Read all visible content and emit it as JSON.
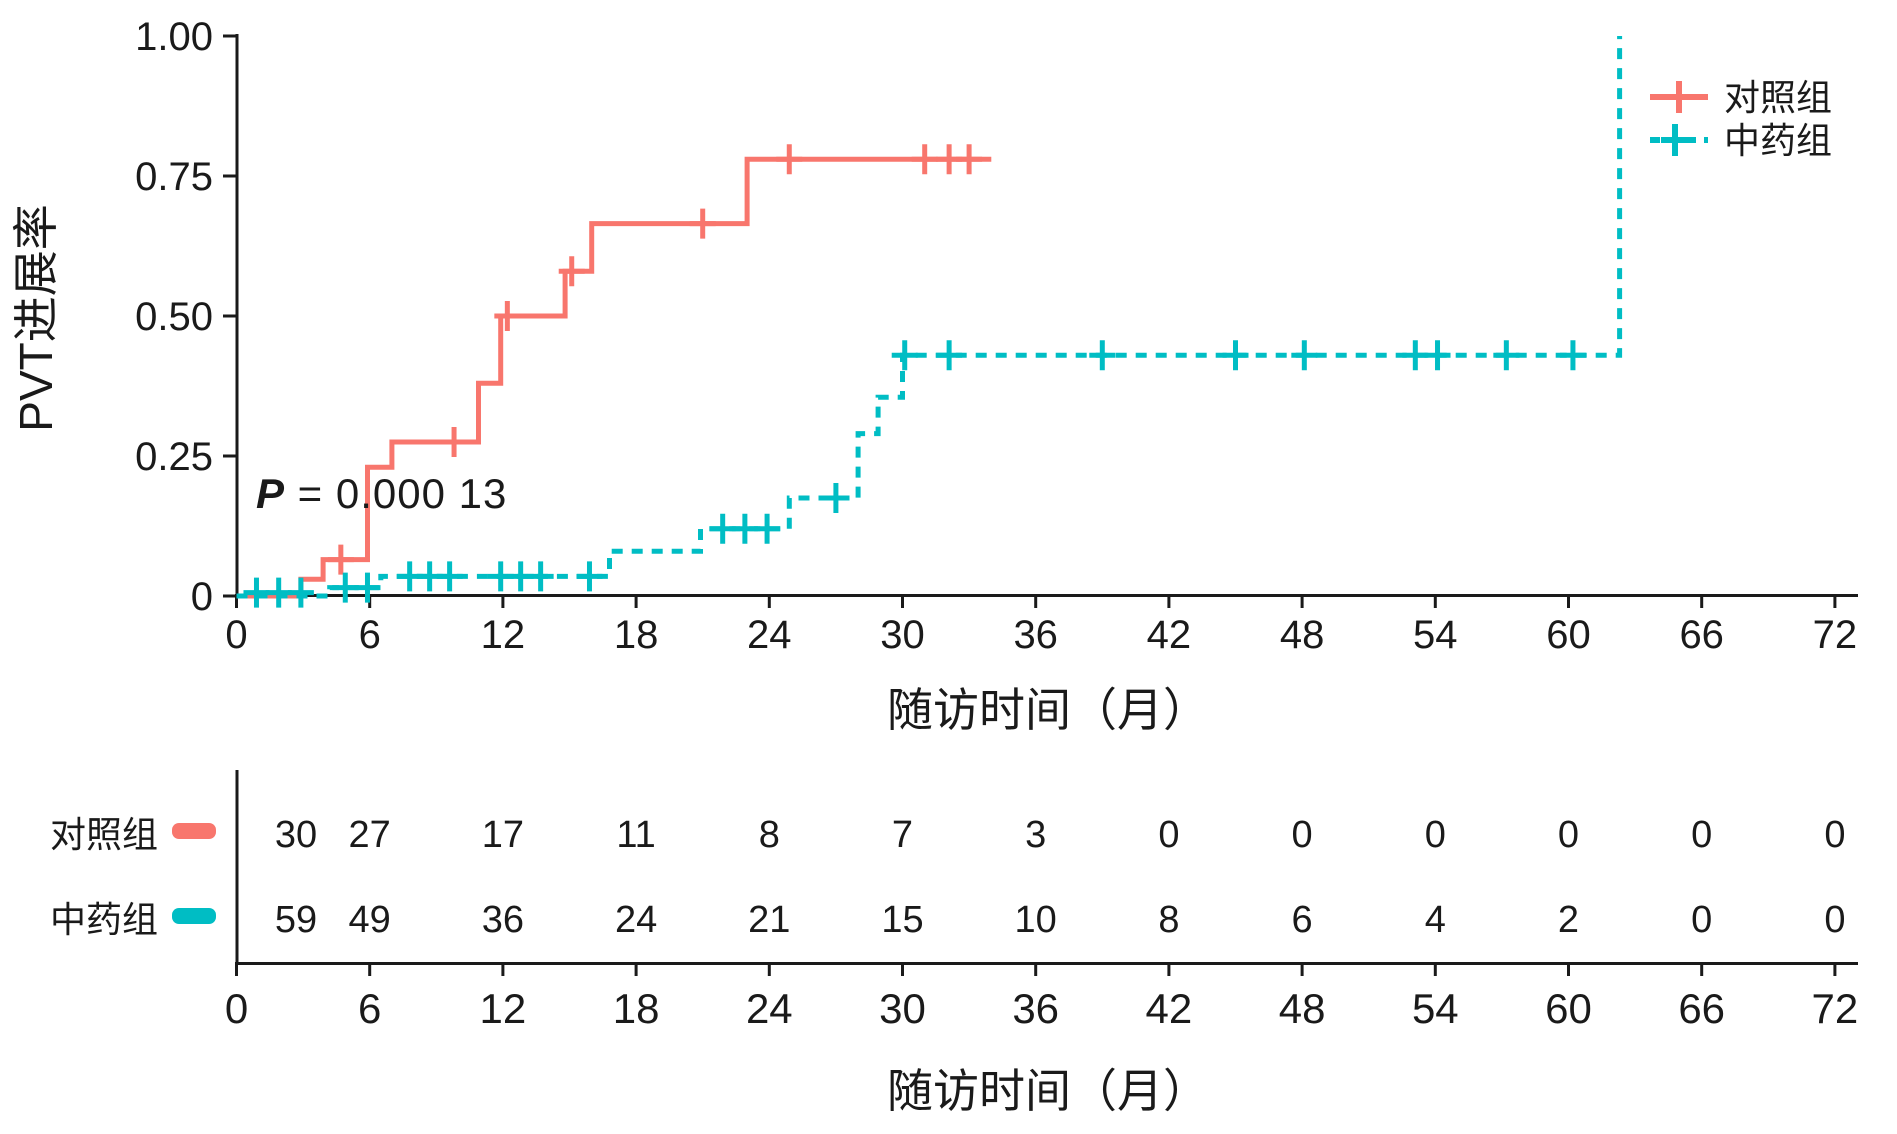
{
  "colors": {
    "control": "#F8766D",
    "herb": "#00BDC4",
    "text": "#1a1a1a",
    "axis": "#1a1a1a"
  },
  "labels": {
    "y_axis": "PVT进展率",
    "x_axis": "随访时间（月）",
    "x_axis_bottom": "随访时间（月）"
  },
  "pvalue": {
    "display": "P = 0.000 13",
    "p": "P",
    "rest": " = 0.000 13"
  },
  "legend": {
    "items": [
      {
        "label": "对照组",
        "color": "control",
        "line": "solid"
      },
      {
        "label": "中药组",
        "color": "herb",
        "line": "dashed"
      }
    ]
  },
  "axes": {
    "x": {
      "min": 0,
      "max": 72,
      "tick_step": 6,
      "ticks": [
        0,
        6,
        12,
        18,
        24,
        30,
        36,
        42,
        48,
        54,
        60,
        66,
        72
      ]
    },
    "y": {
      "min": 0,
      "max": 1,
      "ticks": [
        {
          "v": 0,
          "label": "0"
        },
        {
          "v": 0.25,
          "label": "0.25"
        },
        {
          "v": 0.5,
          "label": "0.50"
        },
        {
          "v": 0.75,
          "label": "0.75"
        },
        {
          "v": 1,
          "label": "1.00"
        }
      ]
    }
  },
  "chart_data": {
    "type": "line",
    "subtype": "kaplan-meier-cumulative-incidence-steps",
    "title": "",
    "xlabel": "随访时间（月）",
    "ylabel": "PVT进展率",
    "xlim": [
      0,
      72
    ],
    "ylim": [
      0,
      1
    ],
    "grid": false,
    "legend_position": "top-right",
    "annotation": "P = 0.000 13",
    "series": [
      {
        "name": "对照组",
        "color": "control",
        "style": "solid",
        "steps": [
          [
            0,
            0
          ],
          [
            2.9,
            0
          ],
          [
            2.9,
            0.03
          ],
          [
            3.9,
            0.03
          ],
          [
            3.9,
            0.065
          ],
          [
            5.9,
            0.065
          ],
          [
            5.9,
            0.23
          ],
          [
            7.0,
            0.23
          ],
          [
            7.0,
            0.275
          ],
          [
            10.9,
            0.275
          ],
          [
            10.9,
            0.38
          ],
          [
            11.9,
            0.38
          ],
          [
            11.9,
            0.5
          ],
          [
            14.8,
            0.5
          ],
          [
            14.8,
            0.58
          ],
          [
            16.0,
            0.58
          ],
          [
            16.0,
            0.665
          ],
          [
            23.0,
            0.665
          ],
          [
            23.0,
            0.78
          ],
          [
            34.0,
            0.78
          ]
        ],
        "censors": [
          [
            4.7,
            0.065
          ],
          [
            9.8,
            0.275
          ],
          [
            12.2,
            0.5
          ],
          [
            15.1,
            0.58
          ],
          [
            21.0,
            0.665
          ],
          [
            24.9,
            0.78
          ],
          [
            31.0,
            0.78
          ],
          [
            32.1,
            0.78
          ],
          [
            33.0,
            0.78
          ]
        ]
      },
      {
        "name": "中药组",
        "color": "herb",
        "style": "dashed",
        "steps": [
          [
            0,
            0
          ],
          [
            4.2,
            0
          ],
          [
            4.2,
            0.015
          ],
          [
            6.5,
            0.015
          ],
          [
            6.5,
            0.035
          ],
          [
            16.8,
            0.035
          ],
          [
            16.8,
            0.08
          ],
          [
            20.9,
            0.08
          ],
          [
            20.9,
            0.12
          ],
          [
            24.9,
            0.12
          ],
          [
            24.9,
            0.175
          ],
          [
            28.0,
            0.175
          ],
          [
            28.0,
            0.29
          ],
          [
            28.9,
            0.29
          ],
          [
            28.9,
            0.355
          ],
          [
            30.0,
            0.355
          ],
          [
            30.0,
            0.43
          ],
          [
            62.3,
            0.43
          ],
          [
            62.3,
            1.0
          ]
        ],
        "censors": [
          [
            0.9,
            0.006
          ],
          [
            1.9,
            0.006
          ],
          [
            2.9,
            0.006
          ],
          [
            4.9,
            0.015
          ],
          [
            5.9,
            0.015
          ],
          [
            7.8,
            0.035
          ],
          [
            8.7,
            0.035
          ],
          [
            9.6,
            0.035
          ],
          [
            11.9,
            0.035
          ],
          [
            12.8,
            0.035
          ],
          [
            13.7,
            0.035
          ],
          [
            15.9,
            0.035
          ],
          [
            21.9,
            0.12
          ],
          [
            22.9,
            0.12
          ],
          [
            23.9,
            0.12
          ],
          [
            27.0,
            0.175
          ],
          [
            30.1,
            0.43
          ],
          [
            32.1,
            0.43
          ],
          [
            39.0,
            0.43
          ],
          [
            45.0,
            0.43
          ],
          [
            48.1,
            0.43
          ],
          [
            53.1,
            0.43
          ],
          [
            54.1,
            0.43
          ],
          [
            57.2,
            0.43
          ],
          [
            60.2,
            0.43
          ]
        ]
      }
    ]
  },
  "risk_table": {
    "months": [
      0,
      6,
      12,
      18,
      24,
      30,
      36,
      42,
      48,
      54,
      60,
      66,
      72
    ],
    "rows": [
      {
        "label": "对照组",
        "color": "control",
        "counts": [
          30,
          27,
          17,
          11,
          8,
          7,
          3,
          0,
          0,
          0,
          0,
          0,
          0
        ]
      },
      {
        "label": "中药组",
        "color": "herb",
        "counts": [
          59,
          49,
          36,
          24,
          21,
          15,
          10,
          8,
          6,
          4,
          2,
          0,
          0
        ]
      }
    ]
  }
}
